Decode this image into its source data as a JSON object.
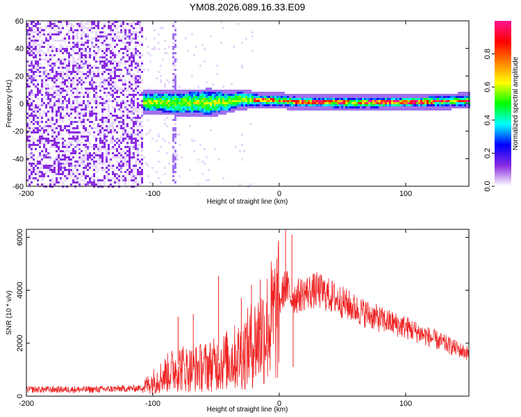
{
  "title": "YM08.2026.089.16.33.E09",
  "chart_data": [
    {
      "type": "heatmap",
      "name": "spectrogram",
      "xlabel": "Height of straight line (km)",
      "ylabel": "Frequency (Hz)",
      "xlim": [
        -200,
        150
      ],
      "ylim": [
        -60,
        60
      ],
      "xticks": [
        -200,
        -100,
        0,
        100
      ],
      "xtick_labels": [
        "-200",
        "-100",
        "0",
        "100"
      ],
      "yticks": [
        -60,
        -40,
        -20,
        0,
        20,
        40,
        60
      ],
      "ytick_labels": [
        "-60",
        "-40",
        "-20",
        "0",
        "20",
        "40",
        "60"
      ],
      "noise_region": {
        "x_from": -200,
        "x_to": -108
      },
      "sparse_column_x": -83,
      "signal_track": [
        {
          "x": -107,
          "freq": 1.0,
          "halfwidth": 6
        },
        {
          "x": -80,
          "freq": 0.5,
          "halfwidth": 7
        },
        {
          "x": -55,
          "freq": 0.5,
          "halfwidth": 8
        },
        {
          "x": -40,
          "freq": 1.5,
          "halfwidth": 6
        },
        {
          "x": -30,
          "freq": 3.0,
          "halfwidth": 5
        },
        {
          "x": -20,
          "freq": 2.5,
          "halfwidth": 4
        },
        {
          "x": 0,
          "freq": 2.0,
          "halfwidth": 3.5
        },
        {
          "x": 20,
          "freq": 1.0,
          "halfwidth": 3.5
        },
        {
          "x": 60,
          "freq": 0.5,
          "halfwidth": 3.5
        },
        {
          "x": 100,
          "freq": 1.0,
          "halfwidth": 3.5
        },
        {
          "x": 150,
          "freq": 2.0,
          "halfwidth": 3.5
        }
      ],
      "colorbar": {
        "label": "Normalized spectral amplitude",
        "range": [
          0,
          1
        ],
        "ticks": [
          0.0,
          0.2,
          0.4,
          0.6,
          0.8
        ],
        "tick_labels": [
          "0.0",
          "0.2",
          "0.4",
          "0.6",
          "0.8"
        ],
        "colors": [
          "#ffffff",
          "#8a2be2",
          "#0000ff",
          "#00ffff",
          "#00ff00",
          "#ffff00",
          "#ff8000",
          "#ff0000",
          "#ff1493"
        ]
      }
    },
    {
      "type": "line",
      "name": "snr",
      "xlabel": "Height of straight line (km)",
      "ylabel": "SNR (10 * v/v)",
      "xlim": [
        -200,
        150
      ],
      "ylim": [
        0,
        6300
      ],
      "xticks": [
        -200,
        -100,
        0,
        100
      ],
      "xtick_labels": [
        "-200",
        "-100",
        "0",
        "100"
      ],
      "yticks": [
        0,
        2000,
        4000,
        6000
      ],
      "ytick_labels": [
        "0",
        "2000",
        "4000",
        "6000"
      ],
      "color": "#ee2222",
      "envelope": {
        "x": [
          -200,
          -150,
          -110,
          -100,
          -90,
          -80,
          -70,
          -60,
          -50,
          -40,
          -30,
          -20,
          -10,
          0,
          5,
          10,
          20,
          30,
          40,
          60,
          80,
          100,
          120,
          150
        ],
        "y": [
          250,
          250,
          300,
          600,
          900,
          1200,
          1100,
          1200,
          1300,
          1500,
          1700,
          2200,
          2800,
          3500,
          4200,
          3700,
          3900,
          4000,
          3800,
          3300,
          2900,
          2600,
          2200,
          1600
        ]
      },
      "spikes": [
        {
          "x": -80,
          "y": 3000
        },
        {
          "x": -68,
          "y": 3100
        },
        {
          "x": -48,
          "y": 4550
        },
        {
          "x": -22,
          "y": 4200
        },
        {
          "x": 5,
          "y": 6300
        },
        {
          "x": 10,
          "y": 6100
        },
        {
          "x": 11,
          "y": 1100
        },
        {
          "x": -30,
          "y": 3700
        },
        {
          "x": -15,
          "y": 4400
        }
      ]
    }
  ]
}
